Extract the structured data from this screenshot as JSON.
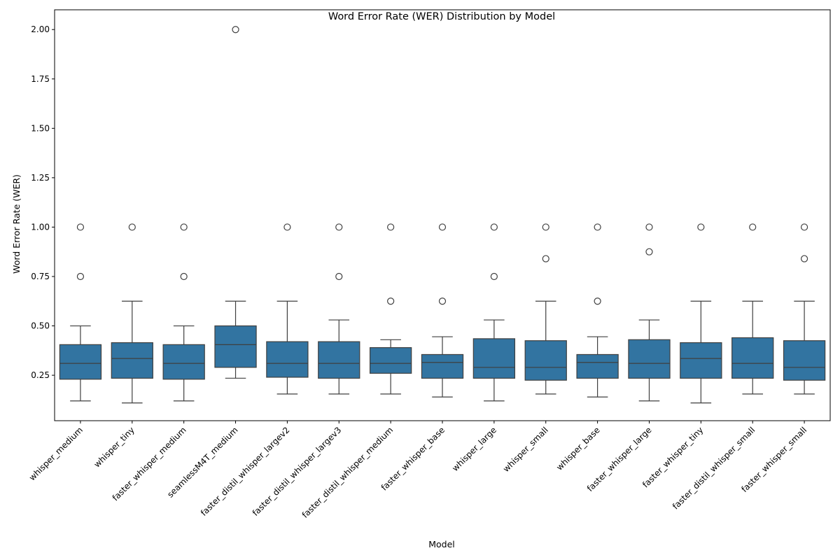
{
  "chart_data": {
    "type": "boxplot",
    "title": "Word Error Rate (WER) Distribution by Model",
    "xlabel": "Model",
    "ylabel": "Word Error Rate (WER)",
    "ylim": [
      0.02,
      2.1
    ],
    "yticks": [
      0.25,
      0.5,
      0.75,
      1.0,
      1.25,
      1.5,
      1.75,
      2.0
    ],
    "ytick_labels": [
      "0.25",
      "0.50",
      "0.75",
      "1.00",
      "1.25",
      "1.50",
      "1.75",
      "2.00"
    ],
    "grid": false,
    "box_color": "#3274a1",
    "categories": [
      "whisper_medium",
      "whisper_tiny",
      "faster_whisper_medium",
      "seamlessM4T_medium",
      "faster_distil_whisper_largev2",
      "faster_distil_whisper_largev3",
      "faster_distil_whisper_medium",
      "faster_whisper_base",
      "whisper_large",
      "whisper_small",
      "whisper_base",
      "faster_whisper_large",
      "faster_whisper_tiny",
      "faster_distil_whisper_small",
      "faster_whisper_small"
    ],
    "boxes": [
      {
        "whisker_low": 0.12,
        "q1": 0.23,
        "median": 0.31,
        "q3": 0.405,
        "whisker_high": 0.5,
        "outliers": [
          1.0,
          0.75
        ]
      },
      {
        "whisker_low": 0.11,
        "q1": 0.235,
        "median": 0.335,
        "q3": 0.415,
        "whisker_high": 0.625,
        "outliers": [
          1.0
        ]
      },
      {
        "whisker_low": 0.12,
        "q1": 0.23,
        "median": 0.31,
        "q3": 0.405,
        "whisker_high": 0.5,
        "outliers": [
          1.0,
          0.75
        ]
      },
      {
        "whisker_low": 0.235,
        "q1": 0.29,
        "median": 0.405,
        "q3": 0.5,
        "whisker_high": 0.625,
        "outliers": [
          2.0
        ]
      },
      {
        "whisker_low": 0.155,
        "q1": 0.24,
        "median": 0.31,
        "q3": 0.42,
        "whisker_high": 0.625,
        "outliers": [
          1.0
        ]
      },
      {
        "whisker_low": 0.155,
        "q1": 0.235,
        "median": 0.31,
        "q3": 0.42,
        "whisker_high": 0.53,
        "outliers": [
          1.0,
          0.75
        ]
      },
      {
        "whisker_low": 0.155,
        "q1": 0.26,
        "median": 0.31,
        "q3": 0.39,
        "whisker_high": 0.43,
        "outliers": [
          1.0,
          0.625
        ]
      },
      {
        "whisker_low": 0.14,
        "q1": 0.235,
        "median": 0.315,
        "q3": 0.355,
        "whisker_high": 0.445,
        "outliers": [
          1.0,
          0.625
        ]
      },
      {
        "whisker_low": 0.12,
        "q1": 0.235,
        "median": 0.29,
        "q3": 0.435,
        "whisker_high": 0.53,
        "outliers": [
          1.0,
          0.75
        ]
      },
      {
        "whisker_low": 0.155,
        "q1": 0.225,
        "median": 0.29,
        "q3": 0.425,
        "whisker_high": 0.625,
        "outliers": [
          1.0,
          0.84
        ]
      },
      {
        "whisker_low": 0.14,
        "q1": 0.235,
        "median": 0.315,
        "q3": 0.355,
        "whisker_high": 0.445,
        "outliers": [
          1.0,
          0.625
        ]
      },
      {
        "whisker_low": 0.12,
        "q1": 0.235,
        "median": 0.31,
        "q3": 0.43,
        "whisker_high": 0.53,
        "outliers": [
          1.0,
          0.875
        ]
      },
      {
        "whisker_low": 0.11,
        "q1": 0.235,
        "median": 0.335,
        "q3": 0.415,
        "whisker_high": 0.625,
        "outliers": [
          1.0
        ]
      },
      {
        "whisker_low": 0.155,
        "q1": 0.235,
        "median": 0.31,
        "q3": 0.44,
        "whisker_high": 0.625,
        "outliers": [
          1.0
        ]
      },
      {
        "whisker_low": 0.155,
        "q1": 0.225,
        "median": 0.29,
        "q3": 0.425,
        "whisker_high": 0.625,
        "outliers": [
          1.0,
          0.84
        ]
      }
    ]
  }
}
